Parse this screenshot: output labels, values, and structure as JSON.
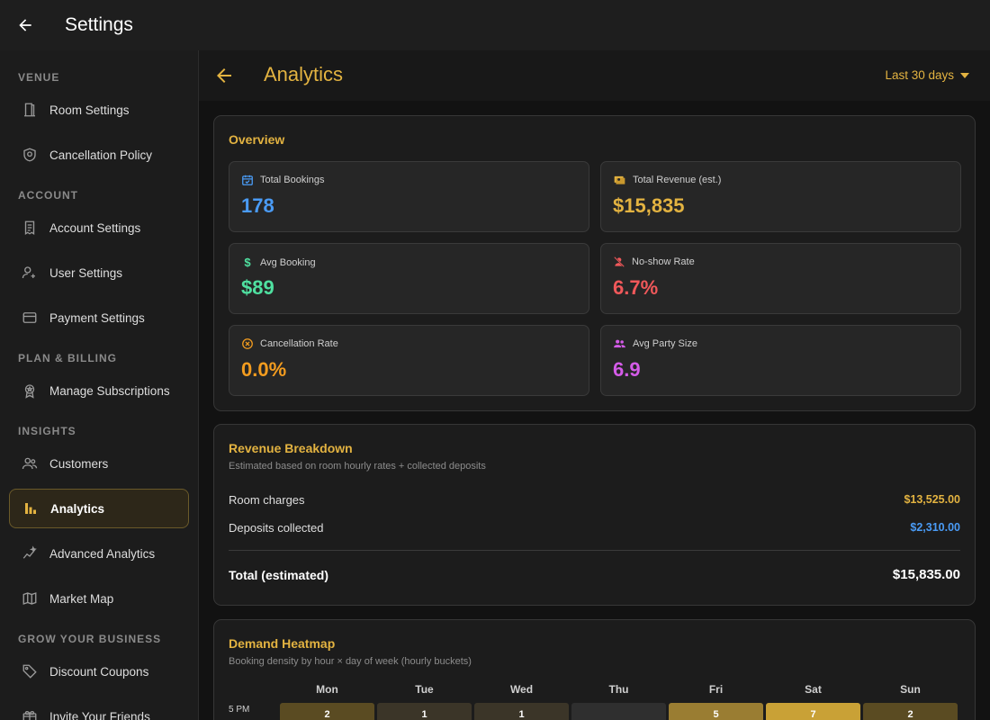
{
  "appbar": {
    "title": "Settings"
  },
  "sidebar": {
    "sections": [
      {
        "title": "VENUE"
      },
      {
        "title": "ACCOUNT"
      },
      {
        "title": "PLAN & BILLING"
      },
      {
        "title": "INSIGHTS"
      },
      {
        "title": "GROW YOUR BUSINESS"
      }
    ],
    "items": [
      {
        "label": "Room Settings",
        "icon": "door-icon"
      },
      {
        "label": "Cancellation Policy",
        "icon": "shield-icon"
      },
      {
        "label": "Account Settings",
        "icon": "receipt-icon"
      },
      {
        "label": "User Settings",
        "icon": "user-gear-icon"
      },
      {
        "label": "Payment Settings",
        "icon": "credit-card-icon"
      },
      {
        "label": "Manage Subscriptions",
        "icon": "award-icon"
      },
      {
        "label": "Customers",
        "icon": "people-icon"
      },
      {
        "label": "Analytics",
        "icon": "bar-chart-icon",
        "active": true
      },
      {
        "label": "Advanced Analytics",
        "icon": "sparkline-icon"
      },
      {
        "label": "Market Map",
        "icon": "map-icon"
      },
      {
        "label": "Discount Coupons",
        "icon": "tag-icon"
      },
      {
        "label": "Invite Your Friends",
        "icon": "gift-icon"
      }
    ]
  },
  "header": {
    "title": "Analytics",
    "range_label": "Last 30 days"
  },
  "overview": {
    "title": "Overview",
    "stats": [
      {
        "label": "Total Bookings",
        "value": "178",
        "icon": "calendar-check-icon",
        "color": "#4a9bf5"
      },
      {
        "label": "Total Revenue (est.)",
        "value": "$15,835",
        "icon": "money-icon",
        "color": "#e3b341"
      },
      {
        "label": "Avg Booking",
        "value": "$89",
        "icon": "dollar-icon",
        "color": "#4fe0a0"
      },
      {
        "label": "No-show Rate",
        "value": "6.7%",
        "icon": "person-off-icon",
        "color": "#f0585a"
      },
      {
        "label": "Cancellation Rate",
        "value": "0.0%",
        "icon": "cancel-circle-icon",
        "color": "#f39c1f"
      },
      {
        "label": "Avg Party Size",
        "value": "6.9",
        "icon": "group-icon",
        "color": "#d45be8"
      }
    ]
  },
  "revenue": {
    "title": "Revenue Breakdown",
    "subtitle": "Estimated based on room hourly rates + collected deposits",
    "rows": [
      {
        "label": "Room charges",
        "value": "$13,525.00",
        "color": "#e3b341"
      },
      {
        "label": "Deposits collected",
        "value": "$2,310.00",
        "color": "#4a9bf5"
      }
    ],
    "total_label": "Total (estimated)",
    "total_value": "$15,835.00"
  },
  "heatmap": {
    "title": "Demand Heatmap",
    "subtitle": "Booking density by hour × day of week (hourly buckets)",
    "days": [
      "Mon",
      "Tue",
      "Wed",
      "Thu",
      "Fri",
      "Sat",
      "Sun"
    ],
    "rows": [
      {
        "hour": "5 PM",
        "values": [
          "2",
          "1",
          "1",
          "",
          "5",
          "7",
          "2"
        ]
      }
    ]
  }
}
